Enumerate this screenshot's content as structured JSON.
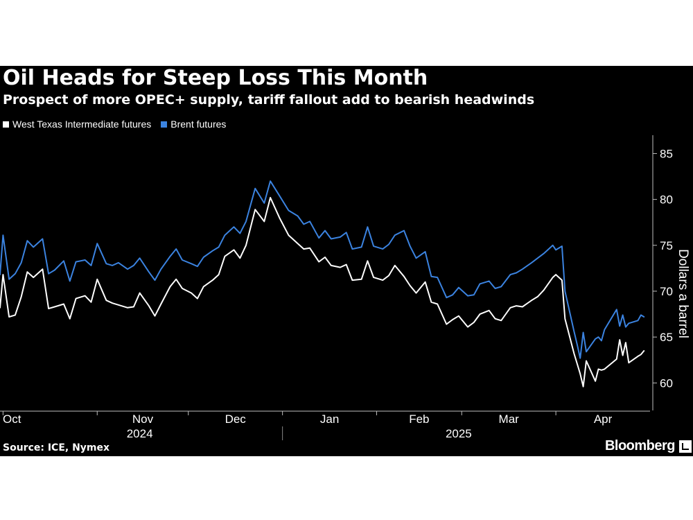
{
  "chart_data": {
    "type": "line",
    "title": "Oil Heads for Steep Loss This Month",
    "subtitle": "Prospect of more OPEC+ supply, tariff fallout add to bearish headwinds",
    "ylabel": "Dollars a barrel",
    "ylim": [
      57,
      87
    ],
    "yticks": [
      60,
      65,
      70,
      75,
      80,
      85
    ],
    "x_range": [
      "2024-09-30",
      "2025-05-02"
    ],
    "month_ticks": [
      {
        "label": "Oct",
        "date": "2024-10-01"
      },
      {
        "label": "Nov",
        "date": "2024-11-01"
      },
      {
        "label": "Dec",
        "date": "2024-12-01"
      },
      {
        "label": "Jan",
        "date": "2025-01-01"
      },
      {
        "label": "Feb",
        "date": "2025-02-01"
      },
      {
        "label": "Mar",
        "date": "2025-03-01"
      },
      {
        "label": "Apr",
        "date": "2025-04-01"
      }
    ],
    "year_labels": [
      {
        "label": "2024",
        "center": "2024-11-15"
      },
      {
        "label": "2025",
        "center": "2025-02-28"
      }
    ],
    "year_divider": "2025-01-01",
    "legend_position": "top-left",
    "grid": false,
    "source": "Source: ICE, Nymex",
    "brand": "Bloomberg",
    "series": [
      {
        "name": "West Texas Intermediate futures",
        "color": "#ffffff",
        "dates": [
          "2024-09-30",
          "2024-10-01",
          "2024-10-03",
          "2024-10-05",
          "2024-10-07",
          "2024-10-09",
          "2024-10-11",
          "2024-10-14",
          "2024-10-16",
          "2024-10-18",
          "2024-10-21",
          "2024-10-23",
          "2024-10-25",
          "2024-10-28",
          "2024-10-30",
          "2024-11-01",
          "2024-11-04",
          "2024-11-06",
          "2024-11-08",
          "2024-11-11",
          "2024-11-13",
          "2024-11-15",
          "2024-11-18",
          "2024-11-20",
          "2024-11-22",
          "2024-11-25",
          "2024-11-27",
          "2024-11-29",
          "2024-12-02",
          "2024-12-04",
          "2024-12-06",
          "2024-12-09",
          "2024-12-11",
          "2024-12-13",
          "2024-12-16",
          "2024-12-18",
          "2024-12-20",
          "2024-12-23",
          "2024-12-26",
          "2024-12-28",
          "2024-12-31",
          "2025-01-03",
          "2025-01-06",
          "2025-01-08",
          "2025-01-10",
          "2025-01-13",
          "2025-01-15",
          "2025-01-17",
          "2025-01-20",
          "2025-01-22",
          "2025-01-24",
          "2025-01-27",
          "2025-01-29",
          "2025-01-31",
          "2025-02-03",
          "2025-02-05",
          "2025-02-07",
          "2025-02-10",
          "2025-02-12",
          "2025-02-14",
          "2025-02-17",
          "2025-02-19",
          "2025-02-21",
          "2025-02-24",
          "2025-02-26",
          "2025-02-28",
          "2025-03-03",
          "2025-03-05",
          "2025-03-07",
          "2025-03-10",
          "2025-03-12",
          "2025-03-14",
          "2025-03-17",
          "2025-03-19",
          "2025-03-21",
          "2025-03-24",
          "2025-03-26",
          "2025-03-28",
          "2025-03-31",
          "2025-04-01",
          "2025-04-03",
          "2025-04-04",
          "2025-04-07",
          "2025-04-08",
          "2025-04-09",
          "2025-04-10",
          "2025-04-11",
          "2025-04-14",
          "2025-04-15",
          "2025-04-16",
          "2025-04-17",
          "2025-04-21",
          "2025-04-22",
          "2025-04-23",
          "2025-04-24",
          "2025-04-25",
          "2025-04-28",
          "2025-04-29",
          "2025-04-30"
        ],
        "values": [
          68.2,
          71.8,
          67.2,
          67.4,
          69.4,
          72.1,
          71.5,
          72.4,
          68.1,
          68.3,
          68.6,
          67.0,
          69.2,
          69.5,
          68.8,
          71.3,
          69.0,
          68.7,
          68.5,
          68.2,
          68.3,
          69.8,
          68.4,
          67.3,
          68.6,
          70.5,
          71.3,
          70.3,
          69.8,
          69.2,
          70.5,
          71.2,
          71.8,
          73.8,
          74.5,
          73.6,
          75.0,
          78.9,
          77.6,
          80.2,
          78.0,
          76.1,
          75.2,
          74.6,
          74.7,
          73.2,
          73.7,
          72.8,
          72.6,
          72.9,
          71.2,
          71.3,
          73.3,
          71.5,
          71.2,
          71.7,
          72.8,
          71.6,
          70.6,
          69.8,
          71.0,
          68.8,
          68.6,
          66.4,
          66.9,
          67.3,
          66.1,
          66.6,
          67.5,
          67.9,
          67.0,
          66.8,
          68.2,
          68.4,
          68.3,
          69.0,
          69.4,
          70.1,
          71.5,
          71.8,
          71.2,
          67.0,
          63.2,
          62.1,
          61.0,
          59.6,
          62.4,
          60.2,
          61.5,
          61.4,
          61.5,
          62.6,
          64.7,
          63.0,
          64.4,
          62.2,
          62.9,
          63.1,
          63.5
        ]
      },
      {
        "name": "Brent futures",
        "color": "#3b83e0",
        "dates": [
          "2024-09-30",
          "2024-10-01",
          "2024-10-03",
          "2024-10-05",
          "2024-10-07",
          "2024-10-09",
          "2024-10-11",
          "2024-10-14",
          "2024-10-16",
          "2024-10-18",
          "2024-10-21",
          "2024-10-23",
          "2024-10-25",
          "2024-10-28",
          "2024-10-30",
          "2024-11-01",
          "2024-11-04",
          "2024-11-06",
          "2024-11-08",
          "2024-11-11",
          "2024-11-13",
          "2024-11-15",
          "2024-11-18",
          "2024-11-20",
          "2024-11-22",
          "2024-11-25",
          "2024-11-27",
          "2024-11-29",
          "2024-12-02",
          "2024-12-04",
          "2024-12-06",
          "2024-12-09",
          "2024-12-11",
          "2024-12-13",
          "2024-12-16",
          "2024-12-18",
          "2024-12-20",
          "2024-12-23",
          "2024-12-26",
          "2024-12-28",
          "2024-12-31",
          "2025-01-03",
          "2025-01-06",
          "2025-01-08",
          "2025-01-10",
          "2025-01-13",
          "2025-01-15",
          "2025-01-17",
          "2025-01-20",
          "2025-01-22",
          "2025-01-24",
          "2025-01-27",
          "2025-01-29",
          "2025-01-31",
          "2025-02-03",
          "2025-02-05",
          "2025-02-07",
          "2025-02-10",
          "2025-02-12",
          "2025-02-14",
          "2025-02-17",
          "2025-02-19",
          "2025-02-21",
          "2025-02-24",
          "2025-02-26",
          "2025-02-28",
          "2025-03-03",
          "2025-03-05",
          "2025-03-07",
          "2025-03-10",
          "2025-03-12",
          "2025-03-14",
          "2025-03-17",
          "2025-03-19",
          "2025-03-21",
          "2025-03-24",
          "2025-03-26",
          "2025-03-28",
          "2025-03-31",
          "2025-04-01",
          "2025-04-03",
          "2025-04-04",
          "2025-04-07",
          "2025-04-08",
          "2025-04-09",
          "2025-04-10",
          "2025-04-11",
          "2025-04-14",
          "2025-04-15",
          "2025-04-16",
          "2025-04-17",
          "2025-04-21",
          "2025-04-22",
          "2025-04-23",
          "2025-04-24",
          "2025-04-25",
          "2025-04-28",
          "2025-04-29",
          "2025-04-30"
        ],
        "values": [
          71.8,
          76.1,
          71.3,
          71.9,
          73.1,
          75.5,
          74.8,
          75.7,
          71.9,
          72.3,
          73.3,
          71.1,
          73.2,
          73.4,
          72.8,
          75.2,
          73.0,
          72.8,
          73.1,
          72.4,
          72.8,
          73.6,
          72.1,
          71.2,
          72.4,
          73.8,
          74.6,
          73.4,
          73.0,
          72.7,
          73.7,
          74.4,
          74.8,
          76.1,
          77.0,
          76.3,
          77.6,
          81.2,
          79.6,
          82.0,
          80.4,
          78.8,
          78.2,
          77.3,
          77.6,
          75.8,
          76.6,
          75.7,
          75.9,
          76.4,
          74.6,
          74.8,
          77.0,
          74.9,
          74.6,
          75.1,
          76.1,
          76.6,
          74.9,
          73.6,
          74.3,
          71.6,
          71.5,
          69.3,
          69.6,
          70.4,
          69.5,
          69.6,
          70.8,
          71.1,
          70.3,
          70.5,
          71.8,
          72.0,
          72.4,
          73.1,
          73.6,
          74.1,
          75.0,
          74.5,
          74.9,
          70.0,
          65.6,
          64.2,
          62.7,
          65.5,
          63.4,
          64.8,
          65.0,
          64.6,
          65.8,
          68.0,
          66.2,
          67.4,
          66.1,
          66.5,
          66.8,
          67.4,
          67.2
        ]
      }
    ]
  }
}
